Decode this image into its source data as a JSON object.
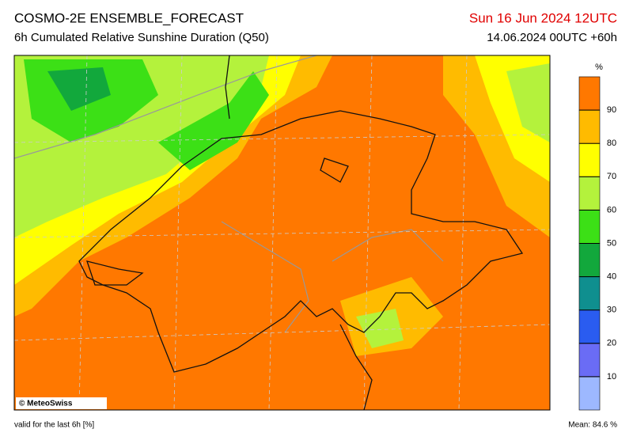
{
  "header": {
    "title": "COSMO-2E ENSEMBLE_FORECAST",
    "subtitle": "6h Cumulated Relative Sunshine Duration (Q50)",
    "valid_time": "Sun 16 Jun 2024 12UTC",
    "run": "14.06.2024 00UTC +60h"
  },
  "colorbar": {
    "unit": "%",
    "ticks": [
      10,
      20,
      30,
      40,
      50,
      60,
      70,
      80,
      90
    ],
    "colors": [
      "#9db8ff",
      "#6a6cf5",
      "#2a5cf0",
      "#0f8f8f",
      "#12a83c",
      "#3ce016",
      "#b4f23c",
      "#ffff00",
      "#ffbb00",
      "#ff7800"
    ]
  },
  "map": {
    "credit": "© MeteoSwiss"
  },
  "footer": {
    "validity": "valid for the last 6h [%]",
    "mean": "Mean:  84.6 %"
  }
}
